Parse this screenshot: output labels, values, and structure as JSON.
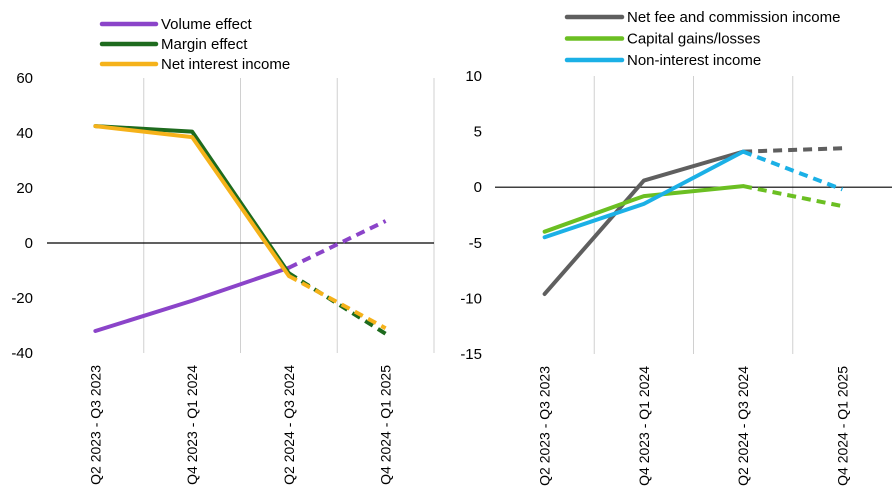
{
  "chart_data": [
    {
      "type": "line",
      "categories": [
        "Q2 2023 - Q3 2023",
        "Q4 2023 - Q1 2024",
        "Q2 2024 - Q3 2024",
        "Q4 2024 - Q1 2025"
      ],
      "ylim": [
        -40,
        60
      ],
      "yticks": [
        -40,
        -20,
        0,
        20,
        40,
        60
      ],
      "grid": "vertical",
      "legend": "top",
      "projection_from_index": 2,
      "series": [
        {
          "name": "Volume effect",
          "color": "#8B44C9",
          "values": [
            -32,
            -21,
            -9,
            8
          ]
        },
        {
          "name": "Margin effect",
          "color": "#1E6B1E",
          "values": [
            42.5,
            40.5,
            -11,
            -33
          ]
        },
        {
          "name": "Net interest income",
          "color": "#F5B21A",
          "values": [
            42.5,
            38.5,
            -12,
            -31
          ]
        }
      ]
    },
    {
      "type": "line",
      "categories": [
        "Q2 2023 - Q3 2023",
        "Q4 2023 - Q1 2024",
        "Q2 2024 - Q3 2024",
        "Q4 2024 - Q1 2025"
      ],
      "ylim": [
        -15,
        10
      ],
      "yticks": [
        -15,
        -10,
        -5,
        0,
        5,
        10
      ],
      "grid": "vertical",
      "legend": "top",
      "projection_from_index": 2,
      "series": [
        {
          "name": "Net fee and commission income",
          "color": "#5F5F5F",
          "values": [
            -9.6,
            0.6,
            3.2,
            3.5
          ]
        },
        {
          "name": "Capital gains/losses",
          "color": "#6BBF22",
          "values": [
            -4,
            -0.8,
            0.1,
            -1.7
          ]
        },
        {
          "name": "Non-interest income",
          "color": "#1BB0E6",
          "values": [
            -4.5,
            -1.5,
            3.2,
            -0.2
          ]
        }
      ]
    }
  ]
}
